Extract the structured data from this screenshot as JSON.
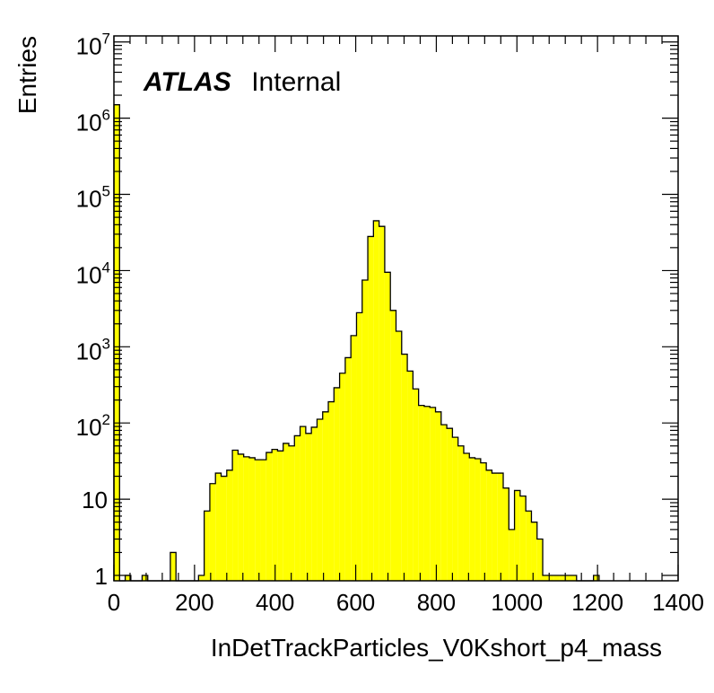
{
  "chart_data": {
    "type": "histogram",
    "xlabel": "InDetTrackParticles_V0Kshort_p4_mass",
    "ylabel": "Entries",
    "xlim": [
      0,
      1400
    ],
    "ylim": [
      0.85,
      12000000
    ],
    "yscale": "log",
    "grid": false,
    "fill_color": "#ffff00",
    "line_color": "#000000",
    "annotation": {
      "experiment": "ATLAS",
      "status": "Internal"
    },
    "x_tick_labels": [
      "0",
      "200",
      "400",
      "600",
      "800",
      "1000",
      "1200",
      "1400"
    ],
    "x_ticks": [
      0,
      200,
      400,
      600,
      800,
      1000,
      1200,
      1400
    ],
    "y_ticks": [
      {
        "value": 1,
        "base": "1",
        "exp": ""
      },
      {
        "value": 10,
        "base": "10",
        "exp": ""
      },
      {
        "value": 100,
        "base": "10",
        "exp": "2"
      },
      {
        "value": 1000,
        "base": "10",
        "exp": "3"
      },
      {
        "value": 10000,
        "base": "10",
        "exp": "4"
      },
      {
        "value": 100000,
        "base": "10",
        "exp": "5"
      },
      {
        "value": 1000000,
        "base": "10",
        "exp": "6"
      },
      {
        "value": 10000000,
        "base": "10",
        "exp": "7"
      }
    ],
    "bin_width": 14,
    "bin_start": 0,
    "counts": [
      1500000,
      0,
      1,
      0,
      0,
      1,
      0,
      0,
      0,
      0,
      2,
      0,
      0,
      0,
      0,
      1,
      7,
      16,
      22,
      20,
      24,
      44,
      39,
      36,
      35,
      33,
      33,
      41,
      45,
      43,
      54,
      50,
      68,
      90,
      73,
      88,
      112,
      140,
      190,
      290,
      450,
      720,
      1400,
      2800,
      7500,
      28000,
      45000,
      38000,
      9500,
      3000,
      1600,
      800,
      480,
      280,
      170,
      165,
      160,
      140,
      95,
      85,
      65,
      50,
      40,
      35,
      34,
      30,
      24,
      22,
      22,
      14,
      4,
      13,
      11,
      7,
      5,
      3,
      1,
      1,
      1,
      1,
      1,
      1,
      0,
      0,
      0,
      1
    ]
  }
}
